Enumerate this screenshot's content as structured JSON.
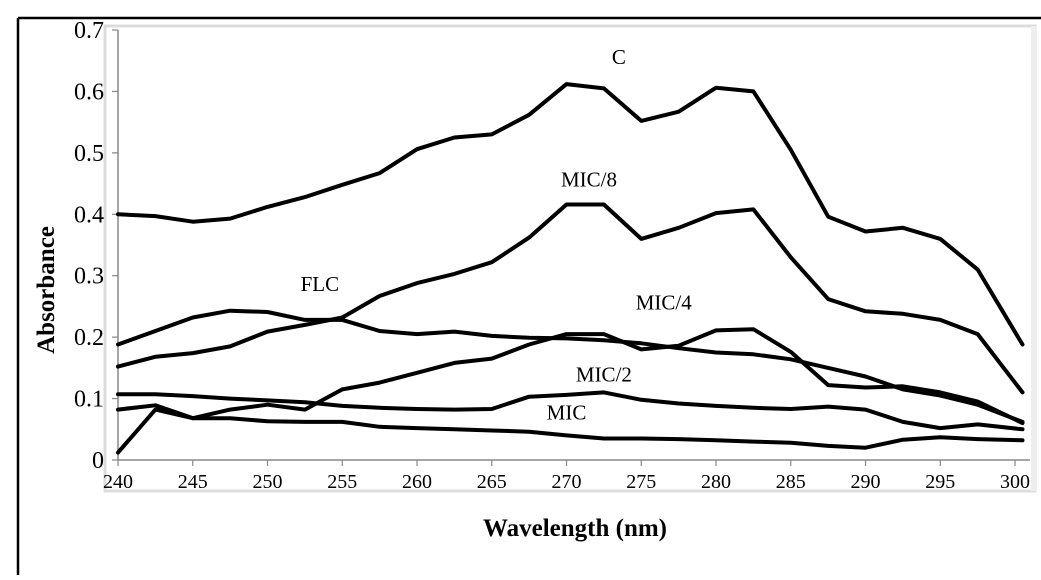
{
  "chart_data": {
    "type": "line",
    "xlabel": "Wavelength (nm)",
    "ylabel": "Absorbance",
    "xlim": [
      240,
      301
    ],
    "ylim": [
      0,
      0.7
    ],
    "y_ticks": [
      "0",
      "0.1",
      "0.2",
      "0.3",
      "0.4",
      "0.5",
      "0.6",
      "0.7"
    ],
    "x_ticks": [
      "240",
      "245",
      "250",
      "255",
      "260",
      "265",
      "270",
      "275",
      "280",
      "285",
      "290",
      "295",
      "300"
    ],
    "grid": false,
    "legend": "none",
    "line_color": "#000000",
    "series": [
      {
        "name": "C",
        "x": [
          240,
          242.5,
          245,
          247.5,
          250,
          252.5,
          255,
          257.5,
          260,
          262.5,
          265,
          267.5,
          270,
          272.5,
          275,
          277.5,
          280,
          282.5,
          285,
          287.5,
          290,
          292.5,
          295,
          297.5,
          300.5
        ],
        "values": [
          0.4,
          0.397,
          0.388,
          0.393,
          0.412,
          0.428,
          0.448,
          0.467,
          0.506,
          0.525,
          0.53,
          0.562,
          0.612,
          0.605,
          0.552,
          0.567,
          0.606,
          0.6,
          0.505,
          0.396,
          0.372,
          0.378,
          0.36,
          0.31,
          0.188
        ]
      },
      {
        "name": "MIC/8",
        "x": [
          240,
          242.5,
          245,
          247.5,
          250,
          252.5,
          255,
          257.5,
          260,
          262.5,
          265,
          267.5,
          270,
          272.5,
          275,
          277.5,
          280,
          282.5,
          285,
          287.5,
          290,
          292.5,
          295,
          297.5,
          300.5
        ],
        "values": [
          0.152,
          0.168,
          0.174,
          0.185,
          0.209,
          0.22,
          0.232,
          0.267,
          0.288,
          0.303,
          0.322,
          0.362,
          0.416,
          0.416,
          0.36,
          0.378,
          0.402,
          0.408,
          0.33,
          0.262,
          0.242,
          0.238,
          0.228,
          0.205,
          0.11
        ]
      },
      {
        "name": "FLC",
        "x": [
          240,
          242.5,
          245,
          247.5,
          250,
          252.5,
          255,
          257.5,
          260,
          262.5,
          265,
          267.5,
          270,
          272.5,
          275,
          277.5,
          280,
          282.5,
          285,
          287.5,
          290,
          292.5,
          295,
          297.5,
          300.5
        ],
        "values": [
          0.188,
          0.21,
          0.232,
          0.243,
          0.241,
          0.228,
          0.228,
          0.21,
          0.205,
          0.209,
          0.202,
          0.199,
          0.198,
          0.195,
          0.19,
          0.182,
          0.175,
          0.172,
          0.164,
          0.15,
          0.136,
          0.115,
          0.105,
          0.09,
          0.062
        ]
      },
      {
        "name": "MIC/4",
        "x": [
          240,
          242.5,
          245,
          247.5,
          250,
          252.5,
          255,
          257.5,
          260,
          262.5,
          265,
          267.5,
          270,
          272.5,
          275,
          277.5,
          280,
          282.5,
          285,
          287.5,
          290,
          292.5,
          295,
          297.5,
          300.5
        ],
        "values": [
          0.012,
          0.082,
          0.068,
          0.082,
          0.09,
          0.082,
          0.115,
          0.126,
          0.142,
          0.158,
          0.165,
          0.188,
          0.205,
          0.205,
          0.18,
          0.186,
          0.211,
          0.213,
          0.176,
          0.122,
          0.118,
          0.12,
          0.11,
          0.095,
          0.06
        ]
      },
      {
        "name": "MIC/2",
        "x": [
          240,
          242.5,
          245,
          247.5,
          250,
          252.5,
          255,
          257.5,
          260,
          262.5,
          265,
          267.5,
          270,
          272.5,
          275,
          277.5,
          280,
          282.5,
          285,
          287.5,
          290,
          292.5,
          295,
          297.5,
          300.5
        ],
        "values": [
          0.107,
          0.107,
          0.104,
          0.1,
          0.097,
          0.094,
          0.088,
          0.085,
          0.083,
          0.082,
          0.083,
          0.103,
          0.106,
          0.11,
          0.098,
          0.092,
          0.088,
          0.085,
          0.083,
          0.087,
          0.082,
          0.062,
          0.052,
          0.058,
          0.05
        ]
      },
      {
        "name": "MIC",
        "x": [
          240,
          242.5,
          245,
          247.5,
          250,
          252.5,
          255,
          257.5,
          260,
          262.5,
          265,
          267.5,
          270,
          272.5,
          275,
          277.5,
          280,
          282.5,
          285,
          287.5,
          290,
          292.5,
          295,
          297.5,
          300.5
        ],
        "values": [
          0.082,
          0.089,
          0.068,
          0.068,
          0.063,
          0.062,
          0.062,
          0.054,
          0.052,
          0.05,
          0.048,
          0.046,
          0.04,
          0.035,
          0.035,
          0.034,
          0.032,
          0.03,
          0.028,
          0.023,
          0.02,
          0.033,
          0.037,
          0.034,
          0.032
        ]
      }
    ],
    "annotations": [
      {
        "text": "C",
        "series": "C"
      },
      {
        "text": "MIC/8",
        "series": "MIC/8"
      },
      {
        "text": "FLC",
        "series": "FLC"
      },
      {
        "text": "MIC/4",
        "series": "MIC/4"
      },
      {
        "text": "MIC/2",
        "series": "MIC/2"
      },
      {
        "text": "MIC",
        "series": "MIC"
      }
    ]
  }
}
